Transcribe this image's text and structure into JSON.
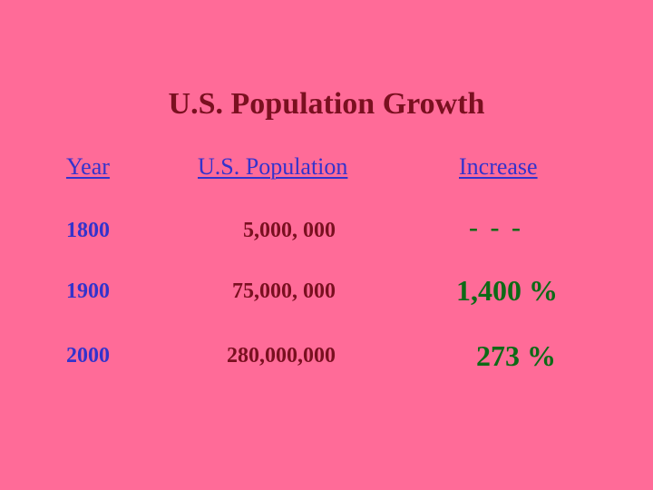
{
  "title": "U.S. Population Growth",
  "table": {
    "headers": {
      "year": "Year",
      "population": "U.S. Population",
      "increase": "Increase"
    },
    "rows": [
      {
        "year": "1800",
        "population": "5,000, 000",
        "increase": "- - -"
      },
      {
        "year": "1900",
        "population": "75,000, 000",
        "increase": "1,400 %"
      },
      {
        "year": "2000",
        "population": "280,000,000",
        "increase": "273 %"
      }
    ]
  },
  "colors": {
    "background": "#ff6b98",
    "title": "#7a1020",
    "year_and_headers": "#3333cc",
    "population": "#7a1020",
    "increase": "#0d6a16"
  }
}
